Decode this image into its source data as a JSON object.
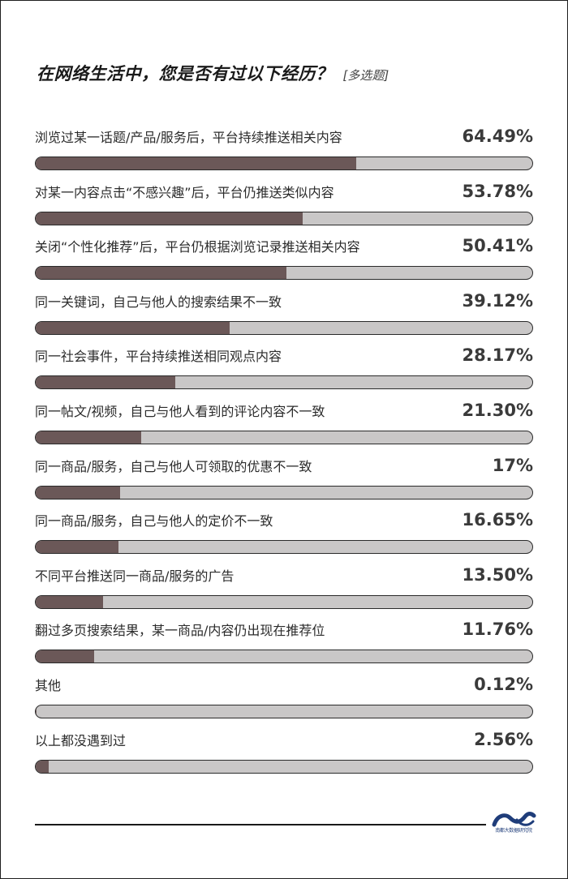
{
  "header": {
    "title": "在网络生活中，您是否有过以下经历？",
    "subtitle": "[多选题]"
  },
  "chart_data": {
    "type": "bar",
    "orientation": "horizontal",
    "title": "在网络生活中，您是否有过以下经历？",
    "subtitle": "[多选题]",
    "xlim": [
      0,
      100
    ],
    "categories": [
      "浏览过某一话题/产品/服务后，平台持续推送相关内容",
      "对某一内容点击“不感兴趣”后，平台仍推送类似内容",
      "关闭“个性化推荐”后，平台仍根据浏览记录推送相关内容",
      "同一关键词，自己与他人的搜索结果不一致",
      "同一社会事件，平台持续推送相同观点内容",
      "同一帖文/视频，自己与他人看到的评论内容不一致",
      "同一商品/服务，自己与他人可领取的优惠不一致",
      "同一商品/服务，自己与他人的定价不一致",
      "不同平台推送同一商品/服务的广告",
      "翻过多页搜索结果，某一商品/内容仍出现在推荐位",
      "其他",
      "以上都没遇到过"
    ],
    "values": [
      64.49,
      53.78,
      50.41,
      39.12,
      28.17,
      21.3,
      17,
      16.65,
      13.5,
      11.76,
      0.12,
      2.56
    ],
    "value_labels": [
      "64.49%",
      "53.78%",
      "50.41%",
      "39.12%",
      "28.17%",
      "21.30%",
      "17%",
      "16.65%",
      "13.50%",
      "11.76%",
      "0.12%",
      "2.56%"
    ],
    "colors": {
      "fill": "#6b5858",
      "track": "#c9c7c7",
      "border": "#2a2a2a"
    }
  },
  "footer": {
    "logo_text": "南都大数据研究院",
    "logo_color": "#1f3d7a",
    "logo_icon": "wave-logo-icon"
  }
}
